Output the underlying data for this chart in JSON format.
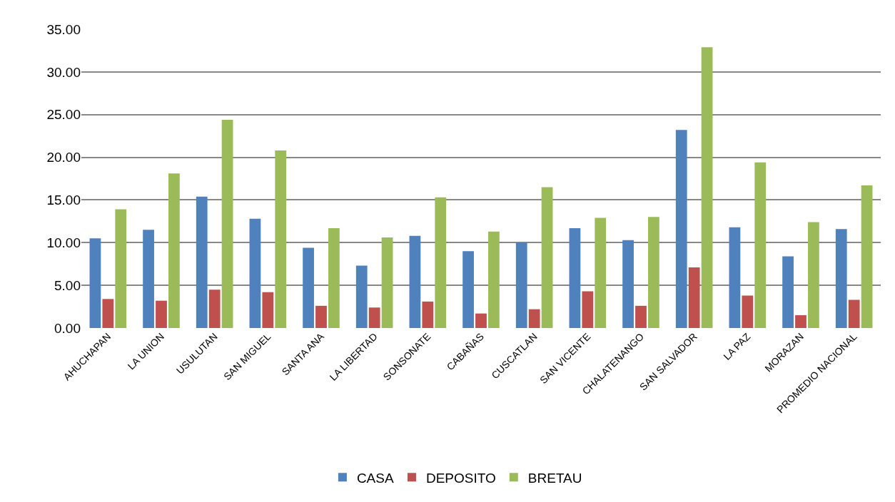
{
  "chart_data": {
    "type": "bar",
    "categories": [
      "AHUCHAPAN",
      "LA UNION",
      "USULUTAN",
      "SAN MIGUEL",
      "SANTA ANA",
      "LA LIBERTAD",
      "SONSONATE",
      "CABAÑAS",
      "CUSCATLAN",
      "SAN VICENTE",
      "CHALATENANGO",
      "SAN SALVADOR",
      "LA PAZ",
      "MORAZAN",
      "PROMEDIO NACIONAL"
    ],
    "series": [
      {
        "name": "CASA",
        "color": "#4f81bd",
        "values": [
          10.5,
          11.5,
          15.4,
          12.8,
          9.4,
          7.3,
          10.8,
          9.0,
          10.0,
          11.7,
          10.3,
          23.2,
          11.8,
          8.4,
          11.6
        ]
      },
      {
        "name": "DEPOSITO",
        "color": "#c0504d",
        "values": [
          3.4,
          3.2,
          4.5,
          4.2,
          2.6,
          2.4,
          3.1,
          1.7,
          2.2,
          4.3,
          2.6,
          7.1,
          3.8,
          1.5,
          3.3
        ]
      },
      {
        "name": "BRETAU",
        "color": "#9bbb59",
        "values": [
          13.9,
          18.1,
          24.4,
          20.8,
          11.7,
          10.6,
          15.3,
          11.3,
          16.5,
          12.9,
          13.0,
          32.9,
          19.4,
          12.4,
          16.7
        ]
      }
    ],
    "ylim": [
      0,
      35
    ],
    "yticks": [
      {
        "value": 0,
        "label": "0.00"
      },
      {
        "value": 5,
        "label": "5.00"
      },
      {
        "value": 10,
        "label": "10.00"
      },
      {
        "value": 15,
        "label": "15.00"
      },
      {
        "value": 20,
        "label": "20.00"
      },
      {
        "value": 25,
        "label": "25.00"
      },
      {
        "value": 30,
        "label": "30.00"
      },
      {
        "value": 35,
        "label": "35.00"
      }
    ],
    "grid": "y",
    "legend": "bottom"
  }
}
